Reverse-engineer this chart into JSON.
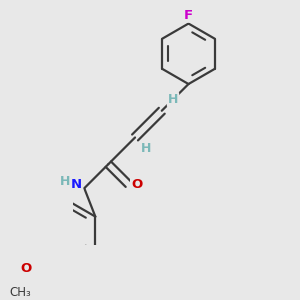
{
  "bg_color": "#e8e8e8",
  "bond_color": "#3a3a3a",
  "bond_lw": 1.6,
  "F_color": "#cc00cc",
  "H_color": "#7ab8b8",
  "N_color": "#1a1aff",
  "O_color": "#cc0000",
  "C_color": "#3a3a3a",
  "label_fontsize": 9.5,
  "figsize": [
    3.0,
    3.0
  ],
  "dpi": 100,
  "xlim": [
    -2.5,
    2.5
  ],
  "ylim": [
    -3.2,
    3.2
  ]
}
